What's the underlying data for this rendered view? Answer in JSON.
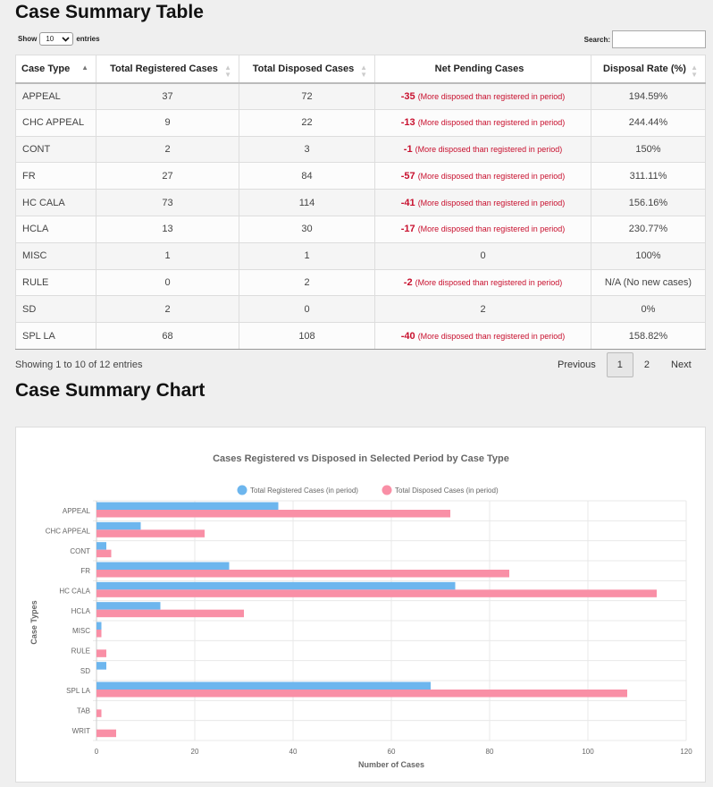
{
  "table_title": "Case Summary Table",
  "chart_title": "Case Summary Chart",
  "controls": {
    "show_label": "Show",
    "entries_value": "10",
    "entries_label": "entries",
    "search_label": "Search:",
    "search_value": ""
  },
  "columns": [
    "Case Type",
    "Total Registered Cases",
    "Total Disposed Cases",
    "Net Pending Cases",
    "Disposal Rate (%)"
  ],
  "rows": [
    {
      "type": "APPEAL",
      "registered": "37",
      "disposed": "72",
      "pending": "-35",
      "note": "(More disposed than registered in period)",
      "rate": "194.59%"
    },
    {
      "type": "CHC APPEAL",
      "registered": "9",
      "disposed": "22",
      "pending": "-13",
      "note": "(More disposed than registered in period)",
      "rate": "244.44%"
    },
    {
      "type": "CONT",
      "registered": "2",
      "disposed": "3",
      "pending": "-1",
      "note": "(More disposed than registered in period)",
      "rate": "150%"
    },
    {
      "type": "FR",
      "registered": "27",
      "disposed": "84",
      "pending": "-57",
      "note": "(More disposed than registered in period)",
      "rate": "311.11%"
    },
    {
      "type": "HC CALA",
      "registered": "73",
      "disposed": "114",
      "pending": "-41",
      "note": "(More disposed than registered in period)",
      "rate": "156.16%"
    },
    {
      "type": "HCLA",
      "registered": "13",
      "disposed": "30",
      "pending": "-17",
      "note": "(More disposed than registered in period)",
      "rate": "230.77%"
    },
    {
      "type": "MISC",
      "registered": "1",
      "disposed": "1",
      "pending": "0",
      "note": "",
      "rate": "100%"
    },
    {
      "type": "RULE",
      "registered": "0",
      "disposed": "2",
      "pending": "-2",
      "note": "(More disposed than registered in period)",
      "rate": "N/A (No new cases)"
    },
    {
      "type": "SD",
      "registered": "2",
      "disposed": "0",
      "pending": "2",
      "note": "",
      "rate": "0%"
    },
    {
      "type": "SPL LA",
      "registered": "68",
      "disposed": "108",
      "pending": "-40",
      "note": "(More disposed than registered in period)",
      "rate": "158.82%"
    }
  ],
  "info": "Showing 1 to 10 of 12 entries",
  "pagination": {
    "previous": "Previous",
    "pages": [
      "1",
      "2"
    ],
    "current": "1",
    "next": "Next"
  },
  "colors": {
    "registered": "#6db6ee",
    "disposed": "#f98fa6",
    "negative": "#c8102e"
  },
  "chart_data": {
    "type": "bar",
    "orientation": "horizontal",
    "title": "Cases Registered vs Disposed in Selected Period by Case Type",
    "categories": [
      "APPEAL",
      "CHC APPEAL",
      "CONT",
      "FR",
      "HC CALA",
      "HCLA",
      "MISC",
      "RULE",
      "SD",
      "SPL LA",
      "TAB",
      "WRIT"
    ],
    "series": [
      {
        "name": "Total Registered Cases (in period)",
        "values": [
          37,
          9,
          2,
          27,
          73,
          13,
          1,
          0,
          2,
          68,
          0,
          0
        ]
      },
      {
        "name": "Total Disposed Cases (in period)",
        "values": [
          72,
          22,
          3,
          84,
          114,
          30,
          1,
          2,
          0,
          108,
          1,
          4
        ]
      }
    ],
    "xlabel": "Number of Cases",
    "ylabel": "Case Types",
    "xlim": [
      0,
      120
    ],
    "xticks": [
      0,
      20,
      40,
      60,
      80,
      100,
      120
    ],
    "legend_position": "top",
    "grid": true
  }
}
